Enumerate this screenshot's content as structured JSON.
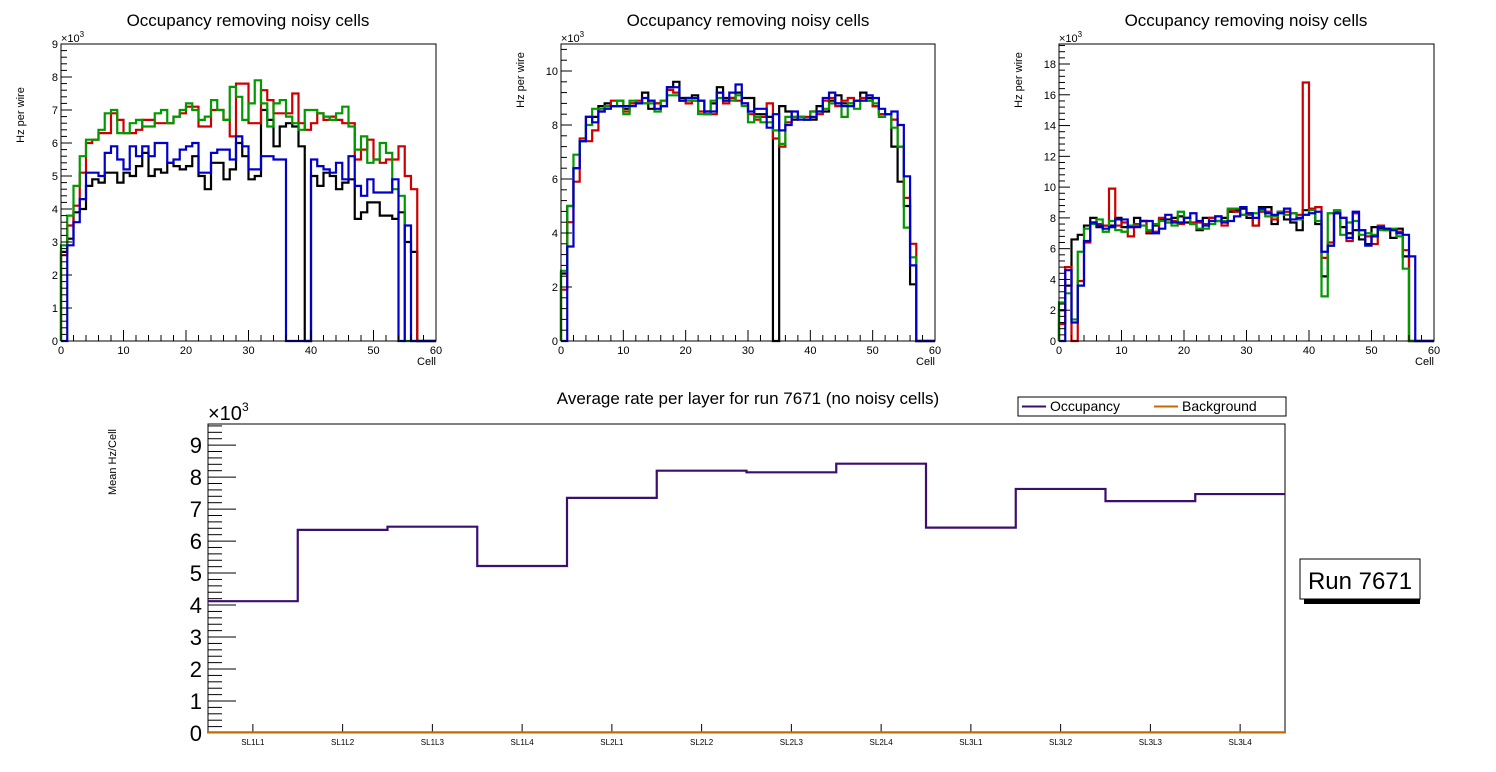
{
  "chart_data": [
    {
      "id": "occ1",
      "type": "step-histogram",
      "title": "Occupancy removing noisy cells",
      "xlabel": "Cell",
      "ylabel": "Hz per wire",
      "y_multiplier_label": "×10",
      "y_multiplier_exp": "3",
      "xlim": [
        0,
        60
      ],
      "ylim": [
        0,
        9
      ],
      "xticks": [
        0,
        10,
        20,
        30,
        40,
        50,
        60
      ],
      "yticks": [
        0,
        1,
        2,
        3,
        4,
        5,
        6,
        7,
        8,
        9
      ],
      "series": [
        {
          "name": "black",
          "color": "#000000",
          "values": [
            2.7,
            3.1,
            3.9,
            4.0,
            4.7,
            4.9,
            4.8,
            5.1,
            5.1,
            4.8,
            5.1,
            5.0,
            5.3,
            5.7,
            5.0,
            5.2,
            5.1,
            5.4,
            5.3,
            5.2,
            5.3,
            5.6,
            5.0,
            4.6,
            5.4,
            5.4,
            4.9,
            5.2,
            6.0,
            5.6,
            4.9,
            5.0,
            7.0,
            6.7,
            5.9,
            6.5,
            6.6,
            6.5,
            5.9,
            0,
            5.0,
            4.7,
            5.1,
            5.0,
            4.6,
            4.8,
            4.9,
            3.7,
            3.9,
            4.2,
            4.2,
            3.8,
            3.8,
            3.7,
            3.9,
            3.0,
            2.7,
            0,
            0,
            0
          ]
        },
        {
          "name": "red",
          "color": "#cc0000",
          "values": [
            2.6,
            3.5,
            4.1,
            5.1,
            6.0,
            6.1,
            6.3,
            6.3,
            6.9,
            6.7,
            6.3,
            6.3,
            6.4,
            6.7,
            6.7,
            6.6,
            6.6,
            6.6,
            6.8,
            6.9,
            7.1,
            7.1,
            6.5,
            6.5,
            7.0,
            7.0,
            6.7,
            6.2,
            7.8,
            7.8,
            6.6,
            6.6,
            7.6,
            7.3,
            6.9,
            6.9,
            6.9,
            7.5,
            6.6,
            6.4,
            6.6,
            6.9,
            6.7,
            6.8,
            6.7,
            6.6,
            6.6,
            5.5,
            5.8,
            6.1,
            5.5,
            5.4,
            5.5,
            5.5,
            5.9,
            5.0,
            4.6,
            0,
            0,
            0
          ]
        },
        {
          "name": "green",
          "color": "#009900",
          "values": [
            2.9,
            3.8,
            4.7,
            5.6,
            6.1,
            6.1,
            6.4,
            6.9,
            7.0,
            6.3,
            6.3,
            6.6,
            6.7,
            6.5,
            6.5,
            6.9,
            7.0,
            6.6,
            6.8,
            7.0,
            7.2,
            7.0,
            6.7,
            6.8,
            7.3,
            7.0,
            6.7,
            7.7,
            7.4,
            6.7,
            7.2,
            7.9,
            7.2,
            6.5,
            7.2,
            7.3,
            6.8,
            6.6,
            6.4,
            7.0,
            7.0,
            6.9,
            6.8,
            6.7,
            6.9,
            7.1,
            6.5,
            5.8,
            6.2,
            5.4,
            5.5,
            6.0,
            5.7,
            4.6,
            4.4,
            0,
            0,
            0,
            0,
            0
          ]
        },
        {
          "name": "blue",
          "color": "#0000cc",
          "values": [
            0,
            2.9,
            3.6,
            4.3,
            5.1,
            5.1,
            5.0,
            5.7,
            5.9,
            5.5,
            5.2,
            5.9,
            5.6,
            5.9,
            5.6,
            6.0,
            6.0,
            5.4,
            5.5,
            5.8,
            5.9,
            6.0,
            5.1,
            5.1,
            5.7,
            5.8,
            5.8,
            5.5,
            6.2,
            5.9,
            5.2,
            5.2,
            5.6,
            5.6,
            5.5,
            5.5,
            0,
            0,
            0,
            0,
            5.5,
            5.3,
            5.2,
            5.1,
            5.4,
            4.9,
            5.6,
            4.7,
            4.4,
            4.9,
            4.5,
            4.5,
            4.5,
            4.9,
            0,
            3.5,
            0,
            0,
            0,
            0
          ]
        }
      ]
    },
    {
      "id": "occ2",
      "type": "step-histogram",
      "title": "Occupancy removing noisy cells",
      "xlabel": "Cell",
      "ylabel": "Hz per wire",
      "y_multiplier_label": "×10",
      "y_multiplier_exp": "3",
      "xlim": [
        0,
        60
      ],
      "ylim": [
        0,
        11
      ],
      "xticks": [
        0,
        10,
        20,
        30,
        40,
        50,
        60
      ],
      "yticks": [
        0,
        2,
        4,
        6,
        8,
        10
      ],
      "series": [
        {
          "name": "black",
          "color": "#000000",
          "values": [
            2.5,
            5.0,
            6.4,
            7.4,
            8.3,
            8.3,
            8.7,
            8.8,
            8.7,
            8.7,
            8.6,
            8.8,
            8.8,
            9.2,
            8.6,
            8.8,
            8.7,
            9.4,
            9.6,
            9.0,
            9.0,
            9.1,
            8.9,
            8.4,
            8.8,
            9.4,
            9.0,
            9.0,
            9.2,
            9.0,
            9.0,
            8.4,
            8.4,
            8.3,
            0,
            8.7,
            8.5,
            8.2,
            8.3,
            8.2,
            8.2,
            8.7,
            8.5,
            8.9,
            9.1,
            8.8,
            8.8,
            8.9,
            9.2,
            9.0,
            8.7,
            8.4,
            8.4,
            7.2,
            5.9,
            5.0,
            2.1,
            0,
            0,
            0
          ]
        },
        {
          "name": "red",
          "color": "#cc0000",
          "values": [
            1.9,
            4.4,
            5.9,
            7.5,
            7.4,
            7.8,
            8.5,
            8.7,
            8.9,
            8.9,
            8.5,
            8.8,
            8.9,
            8.8,
            8.9,
            8.8,
            8.9,
            9.3,
            9.2,
            8.9,
            8.8,
            8.9,
            8.5,
            8.5,
            8.4,
            9.2,
            8.8,
            9.0,
            8.9,
            8.8,
            8.4,
            8.2,
            8.3,
            8.8,
            7.5,
            7.2,
            8.1,
            8.3,
            8.3,
            8.3,
            8.5,
            8.4,
            8.9,
            9.0,
            8.7,
            8.9,
            9.0,
            8.9,
            9.0,
            8.9,
            8.7,
            8.4,
            8.4,
            8.2,
            7.2,
            5.3,
            3.6,
            0,
            0,
            0
          ]
        },
        {
          "name": "green",
          "color": "#009900",
          "values": [
            2.6,
            5.0,
            6.9,
            7.4,
            8.0,
            8.6,
            8.6,
            8.7,
            8.7,
            8.9,
            8.4,
            8.9,
            8.8,
            8.8,
            8.8,
            8.5,
            8.9,
            9.1,
            9.1,
            8.9,
            8.9,
            8.9,
            8.4,
            8.4,
            8.9,
            9.0,
            8.9,
            8.9,
            9.1,
            8.7,
            8.1,
            8.3,
            8.1,
            8.1,
            7.8,
            7.3,
            8.3,
            8.3,
            8.3,
            8.2,
            8.5,
            8.5,
            8.6,
            8.8,
            8.8,
            8.3,
            8.8,
            8.6,
            8.9,
            8.9,
            8.8,
            8.3,
            8.4,
            7.9,
            7.2,
            4.2,
            3.1,
            0,
            0,
            0
          ]
        },
        {
          "name": "blue",
          "color": "#0000cc",
          "values": [
            0,
            3.5,
            6.4,
            7.4,
            8.3,
            8.1,
            8.5,
            8.6,
            8.7,
            8.7,
            8.7,
            8.7,
            8.8,
            9.0,
            8.9,
            8.6,
            8.7,
            9.4,
            9.4,
            8.9,
            9.0,
            9.0,
            8.9,
            8.5,
            8.5,
            9.2,
            8.9,
            9.2,
            9.5,
            8.8,
            8.5,
            8.6,
            8.6,
            7.9,
            8.4,
            7.8,
            8.0,
            8.5,
            8.2,
            8.2,
            8.3,
            8.5,
            9.0,
            9.2,
            8.8,
            8.7,
            8.7,
            8.9,
            8.9,
            9.1,
            9.0,
            8.6,
            8.4,
            8.5,
            8.0,
            6.1,
            2.8,
            0,
            0,
            0
          ]
        }
      ]
    },
    {
      "id": "occ3",
      "type": "step-histogram",
      "title": "Occupancy removing noisy cells",
      "xlabel": "Cell",
      "ylabel": "Hz per wire",
      "y_multiplier_label": "×10",
      "y_multiplier_exp": "3",
      "xlim": [
        0,
        60
      ],
      "ylim": [
        0,
        19.3
      ],
      "xticks": [
        0,
        10,
        20,
        30,
        40,
        50,
        60
      ],
      "yticks": [
        0,
        2,
        4,
        6,
        8,
        10,
        12,
        14,
        16,
        18
      ],
      "series": [
        {
          "name": "black",
          "color": "#000000",
          "values": [
            2.0,
            3.6,
            6.6,
            6.9,
            7.5,
            8.0,
            7.4,
            7.5,
            7.5,
            8.0,
            7.4,
            7.4,
            8.0,
            7.8,
            7.0,
            7.5,
            7.9,
            7.9,
            8.0,
            8.1,
            7.7,
            7.6,
            7.2,
            8.0,
            8.0,
            7.8,
            8.0,
            8.4,
            8.5,
            8.6,
            8.0,
            7.5,
            8.7,
            8.7,
            7.6,
            8.4,
            7.9,
            7.7,
            7.2,
            8.5,
            8.6,
            7.6,
            4.2,
            6.2,
            8.3,
            7.4,
            7.0,
            7.2,
            6.6,
            6.3,
            7.4,
            7.3,
            7.2,
            6.7,
            7.3,
            5.5,
            0,
            0,
            0,
            0
          ]
        },
        {
          "name": "red",
          "color": "#cc0000",
          "values": [
            1.1,
            4.8,
            0,
            3.9,
            6.4,
            7.7,
            7.6,
            7.5,
            9.9,
            7.5,
            7.7,
            6.8,
            7.6,
            7.8,
            7.1,
            7.1,
            8.0,
            7.7,
            7.8,
            7.6,
            8.0,
            7.7,
            7.7,
            7.6,
            8.0,
            8.1,
            7.5,
            8.5,
            8.4,
            8.2,
            8.2,
            7.5,
            8.4,
            8.4,
            7.9,
            8.4,
            8.4,
            8.3,
            8.2,
            16.8,
            8.6,
            8.7,
            5.4,
            6.4,
            8.4,
            8.0,
            6.5,
            8.3,
            7.2,
            6.8,
            6.3,
            7.5,
            7.3,
            7.2,
            7.1,
            5.9,
            0,
            0,
            0,
            0
          ]
        },
        {
          "name": "green",
          "color": "#009900",
          "values": [
            2.5,
            3.1,
            1.4,
            5.8,
            7.3,
            7.6,
            7.9,
            7.1,
            7.8,
            7.2,
            7.1,
            7.5,
            7.5,
            7.5,
            7.2,
            7.6,
            7.8,
            7.7,
            7.5,
            8.4,
            8.0,
            7.6,
            7.3,
            7.3,
            7.6,
            7.8,
            7.8,
            8.6,
            8.6,
            8.2,
            8.3,
            8.3,
            8.5,
            8.1,
            8.1,
            8.4,
            8.2,
            8.3,
            7.9,
            8.2,
            8.5,
            7.8,
            2.9,
            8.3,
            8.5,
            6.9,
            7.7,
            7.8,
            6.9,
            7.0,
            6.9,
            7.2,
            7.2,
            7.3,
            6.8,
            4.7,
            0,
            0,
            0,
            0
          ]
        },
        {
          "name": "blue",
          "color": "#0000cc",
          "values": [
            0,
            4.6,
            1.2,
            3.6,
            6.5,
            7.7,
            7.5,
            7.3,
            7.4,
            7.9,
            7.9,
            7.4,
            7.4,
            7.8,
            7.8,
            7.0,
            7.3,
            8.2,
            7.7,
            7.7,
            8.0,
            8.3,
            7.8,
            7.5,
            7.8,
            8.1,
            7.7,
            7.8,
            8.1,
            8.7,
            8.3,
            8.0,
            8.6,
            8.3,
            8.2,
            8.3,
            8.6,
            7.9,
            8.0,
            8.2,
            8.3,
            8.4,
            5.8,
            6.2,
            8.3,
            8.0,
            6.7,
            8.4,
            7.2,
            6.2,
            6.8,
            7.4,
            7.3,
            7.2,
            7.0,
            6.9,
            5.5,
            0,
            0,
            0
          ]
        }
      ]
    },
    {
      "id": "avg",
      "type": "step-histogram",
      "title": "Average rate per layer for run 7671 (no noisy cells)",
      "xlabel": "",
      "ylabel": "Mean Hz/Cell",
      "y_multiplier_label": "×10",
      "y_multiplier_exp": "3",
      "ylim": [
        0,
        9.66
      ],
      "yticks": [
        0,
        1,
        2,
        3,
        4,
        5,
        6,
        7,
        8,
        9
      ],
      "categories": [
        "SL1L1",
        "SL1L2",
        "SL1L3",
        "SL1L4",
        "SL2L1",
        "SL2L2",
        "SL2L3",
        "SL2L4",
        "SL3L1",
        "SL3L2",
        "SL3L3",
        "SL3L4"
      ],
      "legend": {
        "placement": "top-right",
        "entries": [
          {
            "name": "Occupancy",
            "color": "#3a0f6e"
          },
          {
            "name": "Background",
            "color": "#cc6600"
          }
        ]
      },
      "series": [
        {
          "name": "Occupancy",
          "color": "#3a0f6e",
          "values": [
            4.12,
            6.35,
            6.45,
            5.22,
            7.35,
            8.2,
            8.15,
            8.42,
            6.42,
            7.63,
            7.25,
            7.47
          ]
        },
        {
          "name": "Background",
          "color": "#cc6600",
          "values": [
            0.02,
            0.02,
            0.02,
            0.02,
            0.02,
            0.02,
            0.02,
            0.02,
            0.02,
            0.02,
            0.02,
            0.02
          ]
        }
      ]
    }
  ],
  "run_label": "Run 7671"
}
